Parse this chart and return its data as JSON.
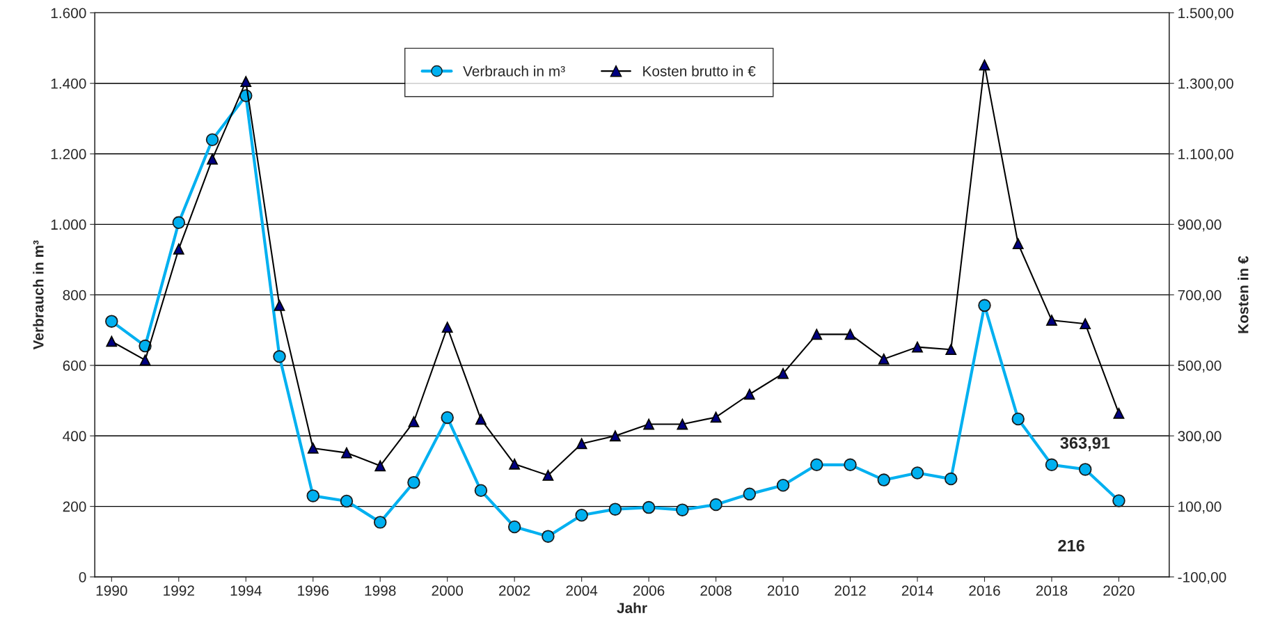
{
  "chart_data": {
    "type": "line",
    "xlabel": "Jahr",
    "ylabel": "Verbrauch in m³",
    "y2label": "Kosten in €",
    "x": [
      1990,
      1991,
      1992,
      1993,
      1994,
      1995,
      1996,
      1997,
      1998,
      1999,
      2000,
      2001,
      2002,
      2003,
      2004,
      2005,
      2006,
      2007,
      2008,
      2009,
      2010,
      2011,
      2012,
      2013,
      2014,
      2015,
      2016,
      2017,
      2018,
      2019,
      2020
    ],
    "series": [
      {
        "name": "Verbrauch in m³",
        "color": "#00b0f0",
        "marker": "circle",
        "values": [
          725,
          655,
          1005,
          1240,
          1365,
          625,
          230,
          215,
          155,
          268,
          452,
          245,
          142,
          115,
          175,
          192,
          197,
          190,
          205,
          235,
          260,
          318,
          318,
          275,
          295,
          278,
          770,
          448,
          318,
          305,
          216
        ],
        "value_labels": [
          null,
          null,
          null,
          null,
          null,
          null,
          null,
          null,
          null,
          null,
          null,
          null,
          null,
          null,
          null,
          null,
          null,
          null,
          null,
          null,
          null,
          null,
          null,
          null,
          null,
          null,
          null,
          null,
          null,
          null,
          "216"
        ]
      },
      {
        "name": "Kosten brutto in €",
        "color": "#000000",
        "marker": "triangle",
        "axis": "y2",
        "values": [
          568,
          515,
          830,
          1085,
          1305,
          670,
          265,
          252,
          215,
          340,
          608,
          347,
          220,
          188,
          278,
          300,
          333,
          333,
          353,
          418,
          477,
          588,
          588,
          518,
          552,
          545,
          1352,
          845,
          628,
          618,
          363.91
        ],
        "value_labels": [
          null,
          null,
          null,
          null,
          null,
          null,
          null,
          null,
          null,
          null,
          null,
          null,
          null,
          null,
          null,
          null,
          null,
          null,
          null,
          null,
          null,
          null,
          null,
          null,
          null,
          null,
          null,
          null,
          null,
          null,
          "363,91"
        ]
      }
    ],
    "xlim": [
      1989.5,
      2021.5
    ],
    "xticks": [
      1990,
      1992,
      1994,
      1996,
      1998,
      2000,
      2002,
      2004,
      2006,
      2008,
      2010,
      2012,
      2014,
      2016,
      2018,
      2020
    ],
    "ylim": [
      0,
      1600
    ],
    "yticks": [
      0,
      200,
      400,
      600,
      800,
      {
        "value": 1000,
        "label": "1.000"
      },
      {
        "value": 1200,
        "label": "1.200"
      },
      {
        "value": 1400,
        "label": "1.400"
      },
      {
        "value": 1600,
        "label": "1.600"
      }
    ],
    "y2lim": [
      -100,
      1500
    ],
    "y2ticks": [
      {
        "value": -100,
        "label": "-100,00"
      },
      {
        "value": 100,
        "label": "100,00"
      },
      {
        "value": 300,
        "label": "300,00"
      },
      {
        "value": 500,
        "label": "500,00"
      },
      {
        "value": 700,
        "label": "700,00"
      },
      {
        "value": 900,
        "label": "900,00"
      },
      {
        "value": 1100,
        "label": "1.100,00"
      },
      {
        "value": 1300,
        "label": "1.300,00"
      },
      {
        "value": 1500,
        "label": "1.500,00"
      }
    ],
    "grid": "y",
    "legend": "top"
  }
}
